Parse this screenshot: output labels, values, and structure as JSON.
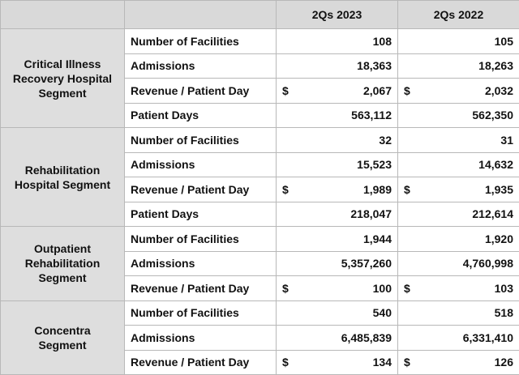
{
  "table": {
    "columns": [
      "2Qs 2023",
      "2Qs 2022"
    ],
    "segments": [
      {
        "lines": [
          "Critical Illness",
          "Recovery Hospital",
          "Segment"
        ],
        "rows": [
          {
            "metric": "Number of Facilities",
            "cells": [
              {
                "value": "108"
              },
              {
                "value": "105"
              }
            ]
          },
          {
            "metric": "Admissions",
            "cells": [
              {
                "value": "18,363"
              },
              {
                "value": "18,263"
              }
            ]
          },
          {
            "metric": "Revenue / Patient Day",
            "cells": [
              {
                "prefix": "$",
                "value": "2,067"
              },
              {
                "prefix": "$",
                "value": "2,032"
              }
            ]
          },
          {
            "metric": "Patient Days",
            "cells": [
              {
                "value": "563,112"
              },
              {
                "value": "562,350"
              }
            ]
          }
        ]
      },
      {
        "lines": [
          "Rehabilitation",
          "Hospital Segment"
        ],
        "rows": [
          {
            "metric": "Number of Facilities",
            "cells": [
              {
                "value": "32"
              },
              {
                "value": "31"
              }
            ]
          },
          {
            "metric": "Admissions",
            "cells": [
              {
                "value": "15,523"
              },
              {
                "value": "14,632"
              }
            ]
          },
          {
            "metric": "Revenue / Patient Day",
            "cells": [
              {
                "prefix": "$",
                "value": "1,989"
              },
              {
                "prefix": "$",
                "value": "1,935"
              }
            ]
          },
          {
            "metric": "Patient Days",
            "cells": [
              {
                "value": "218,047"
              },
              {
                "value": "212,614"
              }
            ]
          }
        ]
      },
      {
        "lines": [
          "Outpatient",
          "Rehabilitation",
          "Segment"
        ],
        "rows": [
          {
            "metric": "Number of Facilities",
            "cells": [
              {
                "value": "1,944"
              },
              {
                "value": "1,920"
              }
            ]
          },
          {
            "metric": "Admissions",
            "cells": [
              {
                "value": "5,357,260"
              },
              {
                "value": "4,760,998"
              }
            ]
          },
          {
            "metric": "Revenue / Patient Day",
            "cells": [
              {
                "prefix": "$",
                "value": "100"
              },
              {
                "prefix": "$",
                "value": "103"
              }
            ]
          }
        ]
      },
      {
        "lines": [
          "Concentra",
          "Segment"
        ],
        "rows": [
          {
            "metric": "Number of Facilities",
            "cells": [
              {
                "value": "540"
              },
              {
                "value": "518"
              }
            ]
          },
          {
            "metric": "Admissions",
            "cells": [
              {
                "value": "6,485,839"
              },
              {
                "value": "6,331,410"
              }
            ]
          },
          {
            "metric": "Revenue / Patient Day",
            "cells": [
              {
                "prefix": "$",
                "value": "134"
              },
              {
                "prefix": "$",
                "value": "126"
              }
            ]
          }
        ]
      }
    ]
  }
}
